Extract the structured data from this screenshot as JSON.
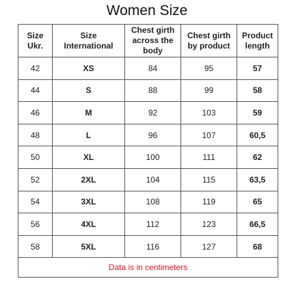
{
  "title": "Women Size",
  "table": {
    "header": [
      "Size Ukr.",
      "Size International",
      "Chest girth across the body",
      "Chest girth by product",
      "Product length"
    ],
    "rows": [
      [
        "42",
        "XS",
        "84",
        "95",
        "57"
      ],
      [
        "44",
        "S",
        "88",
        "99",
        "58"
      ],
      [
        "46",
        "M",
        "92",
        "103",
        "59"
      ],
      [
        "48",
        "L",
        "96",
        "107",
        "60,5"
      ],
      [
        "50",
        "XL",
        "100",
        "111",
        "62"
      ],
      [
        "52",
        "2XL",
        "104",
        "115",
        "63,5"
      ],
      [
        "54",
        "3XL",
        "108",
        "119",
        "65"
      ],
      [
        "56",
        "4XL",
        "112",
        "123",
        "66,5"
      ],
      [
        "58",
        "5XL",
        "116",
        "127",
        "68"
      ]
    ],
    "note": "Data is in centimeters"
  }
}
